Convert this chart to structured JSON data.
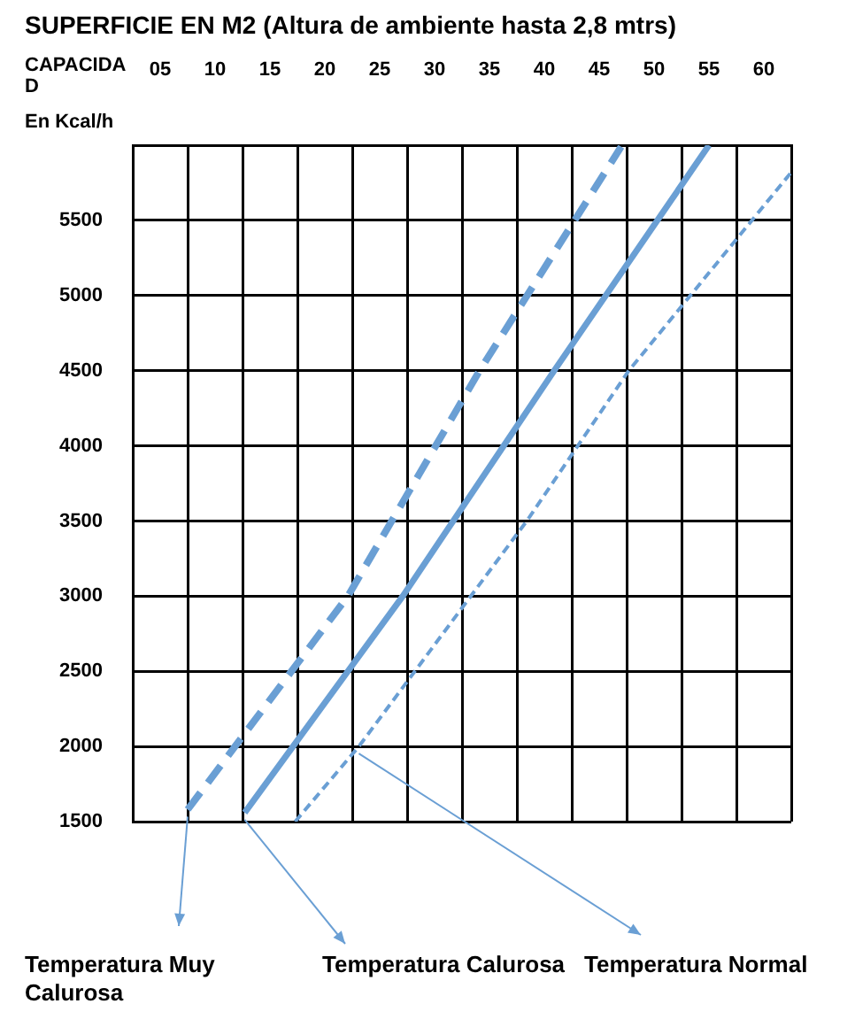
{
  "chart_data": {
    "type": "line",
    "title": "SUPERFICIE EN M2 (Altura de ambiente hasta 2,8 mtrs)",
    "xlabel": "CAPACIDAD",
    "ylabel": "En Kcal/h",
    "xlim": [
      2.5,
      62.5
    ],
    "xticks": [
      {
        "value": 2.5,
        "label": null
      },
      {
        "value": 5,
        "label": "05"
      },
      {
        "value": 7.5,
        "label": null
      },
      10,
      {
        "value": 12.5,
        "label": null
      },
      15,
      {
        "value": 17.5,
        "label": null
      },
      20,
      {
        "value": 22.5,
        "label": null
      },
      25,
      {
        "value": 27.5,
        "label": null
      },
      30,
      {
        "value": 32.5,
        "label": null
      },
      35,
      {
        "value": 37.5,
        "label": null
      },
      40,
      {
        "value": 42.5,
        "label": null
      },
      45,
      {
        "value": 47.5,
        "label": null
      },
      50,
      {
        "value": 52.5,
        "label": null
      },
      55,
      {
        "value": 57.5,
        "label": null
      },
      60,
      {
        "value": 62.5,
        "label": null
      }
    ],
    "ylim": [
      1500,
      6000
    ],
    "yticks": [
      1500,
      2000,
      2500,
      3000,
      3500,
      4000,
      4500,
      5000,
      5500,
      {
        "value": 6000,
        "label": null
      }
    ],
    "grid": true,
    "legend": "bottom",
    "marker": "none",
    "series": [
      {
        "name": "Temperatura Muy Calurosa",
        "color": "#6a9fd4",
        "line_style": "dashed",
        "x": [
          7.5,
          22.1,
          34.1,
          47
        ],
        "values": [
          1580,
          3000,
          4500,
          5990
        ]
      },
      {
        "name": "Temperatura Calurosa",
        "color": "#6a9fd4",
        "line_style": "solid",
        "x": [
          12.7,
          27.1,
          40.9,
          55
        ],
        "values": [
          1560,
          3000,
          4500,
          6000
        ]
      },
      {
        "name": "Temperatura Normal",
        "color": "#6a9fd4",
        "line_style": "dotted",
        "x": [
          17.3,
          23.1,
          38.4,
          47.7,
          62.5
        ],
        "values": [
          1500,
          2000,
          3500,
          4500,
          5820
        ]
      }
    ]
  }
}
